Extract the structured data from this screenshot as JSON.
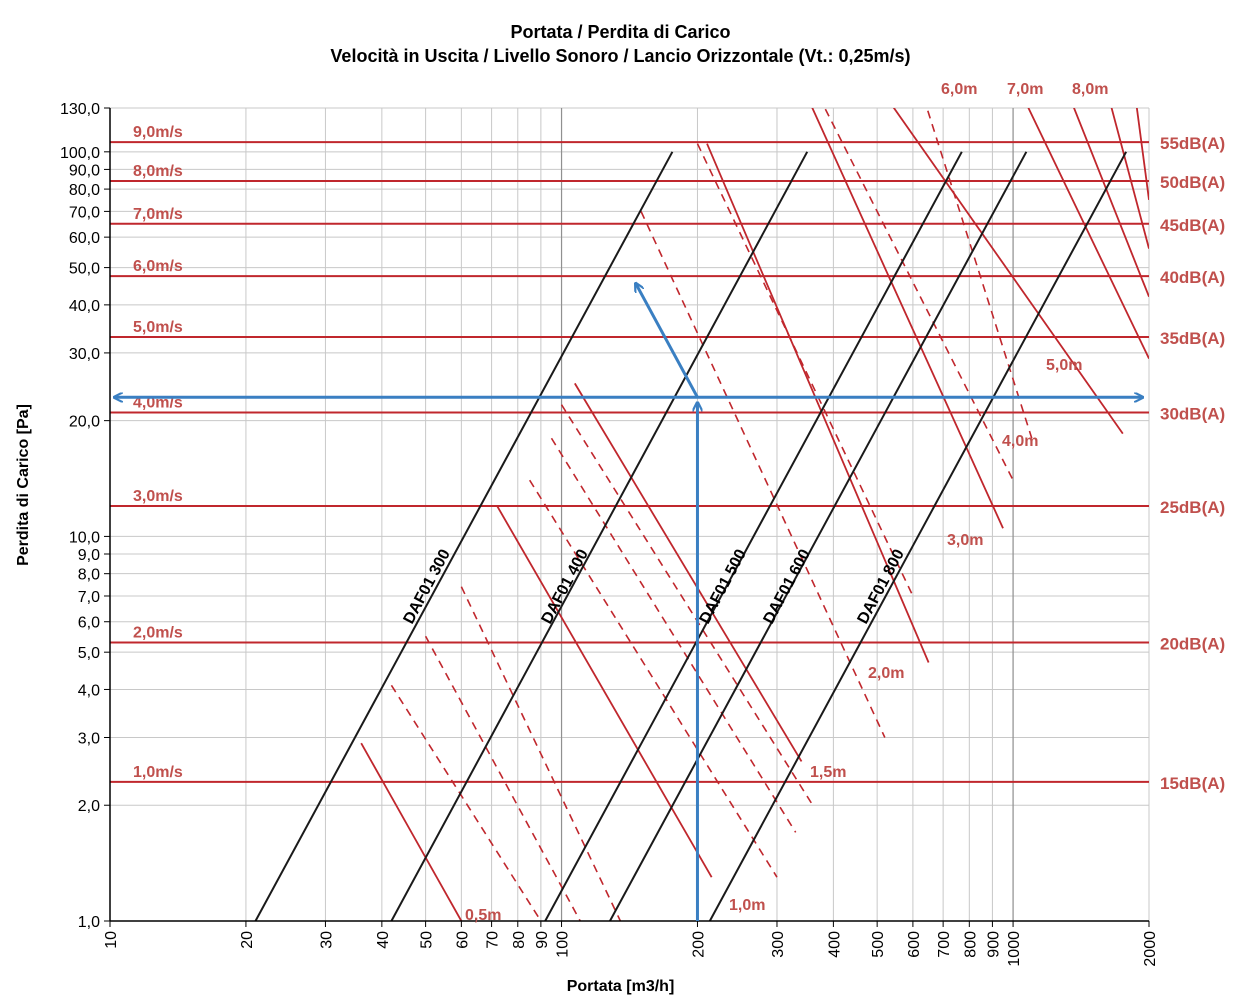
{
  "title_line1": "Portata / Perdita di Carico",
  "title_line2": "Velocità in Uscita / Livello Sonoro / Lancio Orizzontale (Vt.: 0,25m/s)",
  "chart_data": {
    "type": "line",
    "x_scale": "log",
    "y_scale": "log",
    "xlabel": "Portata [m3/h]",
    "ylabel": "Perdita di Carico [Pa]",
    "xlim": [
      10,
      2000
    ],
    "ylim": [
      1,
      130
    ],
    "x_ticks": [
      10,
      20,
      30,
      40,
      50,
      60,
      70,
      80,
      90,
      100,
      200,
      300,
      400,
      500,
      600,
      700,
      800,
      900,
      1000,
      2000
    ],
    "x_tick_labels": [
      "10",
      "20",
      "30",
      "40",
      "50",
      "60",
      "70",
      "80",
      "90",
      "100",
      "200",
      "300",
      "400",
      "500",
      "600",
      "700",
      "800",
      "900",
      "1000",
      "2000"
    ],
    "y_ticks": [
      1,
      2,
      3,
      4,
      5,
      6,
      7,
      8,
      9,
      10,
      20,
      30,
      40,
      50,
      60,
      70,
      80,
      90,
      100,
      130
    ],
    "y_tick_labels": [
      "1,0",
      "2,0",
      "3,0",
      "4,0",
      "5,0",
      "6,0",
      "7,0",
      "8,0",
      "9,0",
      "10,0",
      "20,0",
      "30,0",
      "40,0",
      "50,0",
      "60,0",
      "70,0",
      "80,0",
      "90,0",
      "100,0",
      "130,0"
    ],
    "grid": true,
    "series": [
      {
        "name": "DAF01 300",
        "x": [
          21,
          176
        ],
        "y": [
          1.0,
          100
        ],
        "color": "#1a1a1a"
      },
      {
        "name": "DAF01 400",
        "x": [
          42,
          350
        ],
        "y": [
          1.0,
          100
        ],
        "color": "#1a1a1a"
      },
      {
        "name": "DAF01 500",
        "x": [
          92,
          770
        ],
        "y": [
          1.0,
          100
        ],
        "color": "#1a1a1a"
      },
      {
        "name": "DAF01 600",
        "x": [
          128,
          1070
        ],
        "y": [
          1.0,
          100
        ],
        "color": "#1a1a1a"
      },
      {
        "name": "DAF01 800",
        "x": [
          213,
          1780
        ],
        "y": [
          1.0,
          100
        ],
        "color": "#1a1a1a"
      }
    ],
    "velocity_lines": [
      {
        "label": "1,0m/s",
        "y": 2.3
      },
      {
        "label": "2,0m/s",
        "y": 5.3
      },
      {
        "label": "3,0m/s",
        "y": 12.0
      },
      {
        "label": "4,0m/s",
        "y": 21.0
      },
      {
        "label": "5,0m/s",
        "y": 33.0
      },
      {
        "label": "6,0m/s",
        "y": 47.5
      },
      {
        "label": "7,0m/s",
        "y": 65.0
      },
      {
        "label": "8,0m/s",
        "y": 84.0
      },
      {
        "label": "9,0m/s",
        "y": 106.0
      }
    ],
    "sound_levels": [
      {
        "label": "15dB(A)",
        "y": 2.3
      },
      {
        "label": "20dB(A)",
        "y": 5.3
      },
      {
        "label": "25dB(A)",
        "y": 12.0
      },
      {
        "label": "30dB(A)",
        "y": 21.0
      },
      {
        "label": "35dB(A)",
        "y": 33.0
      },
      {
        "label": "40dB(A)",
        "y": 47.5
      },
      {
        "label": "45dB(A)",
        "y": 65.0
      },
      {
        "label": "50dB(A)",
        "y": 84.0
      },
      {
        "label": "55dB(A)",
        "y": 106.0
      }
    ],
    "throw_lines": [
      {
        "label": "0,5m",
        "x": [
          36,
          60
        ],
        "y": [
          2.9,
          1.0
        ]
      },
      {
        "label": "1,0m",
        "x": [
          72,
          215
        ],
        "y": [
          12.0,
          1.3
        ]
      },
      {
        "label": "1,5m",
        "x": [
          107,
          340
        ],
        "y": [
          25.0,
          2.6
        ]
      },
      {
        "label": "2,0m",
        "x": [
          210,
          650
        ],
        "y": [
          105.0,
          4.7
        ]
      },
      {
        "label": "3,0m",
        "x": [
          340,
          950
        ],
        "y": [
          150.0,
          10.5
        ]
      },
      {
        "label": "4,0m",
        "x": [
          500,
          1750
        ],
        "y": [
          150.0,
          18.5
        ]
      },
      {
        "label": "5,0m",
        "x": [
          1020,
          2000
        ],
        "y": [
          150.0,
          29.0
        ]
      },
      {
        "label": "6,0m",
        "x": [
          1300,
          2000
        ],
        "y": [
          150.0,
          42.0
        ]
      },
      {
        "label": "7,0m",
        "x": [
          1600,
          2000
        ],
        "y": [
          150.0,
          56.0
        ]
      },
      {
        "label": "8,0m",
        "x": [
          1850,
          2000
        ],
        "y": [
          150.0,
          75.0
        ]
      }
    ],
    "throw_dashed": [
      {
        "x": [
          42,
          90
        ],
        "y": [
          4.1,
          1.0
        ]
      },
      {
        "x": [
          50,
          110
        ],
        "y": [
          5.5,
          1.0
        ]
      },
      {
        "x": [
          60,
          135
        ],
        "y": [
          7.4,
          1.0
        ]
      },
      {
        "x": [
          85,
          300
        ],
        "y": [
          14.0,
          1.3
        ]
      },
      {
        "x": [
          95,
          330
        ],
        "y": [
          18.0,
          1.7
        ]
      },
      {
        "x": [
          100,
          360
        ],
        "y": [
          22.0,
          2.0
        ]
      },
      {
        "x": [
          150,
          520
        ],
        "y": [
          70.0,
          3.0
        ]
      },
      {
        "x": [
          200,
          600
        ],
        "y": [
          105.0,
          7.0
        ]
      },
      {
        "x": [
          360,
          1000
        ],
        "y": [
          150.0,
          14.0
        ]
      },
      {
        "x": [
          620,
          1100
        ],
        "y": [
          150.0,
          18.0
        ]
      }
    ],
    "example_path": {
      "flow": 200,
      "pressure": 23,
      "color": "#3a7fc2"
    }
  }
}
